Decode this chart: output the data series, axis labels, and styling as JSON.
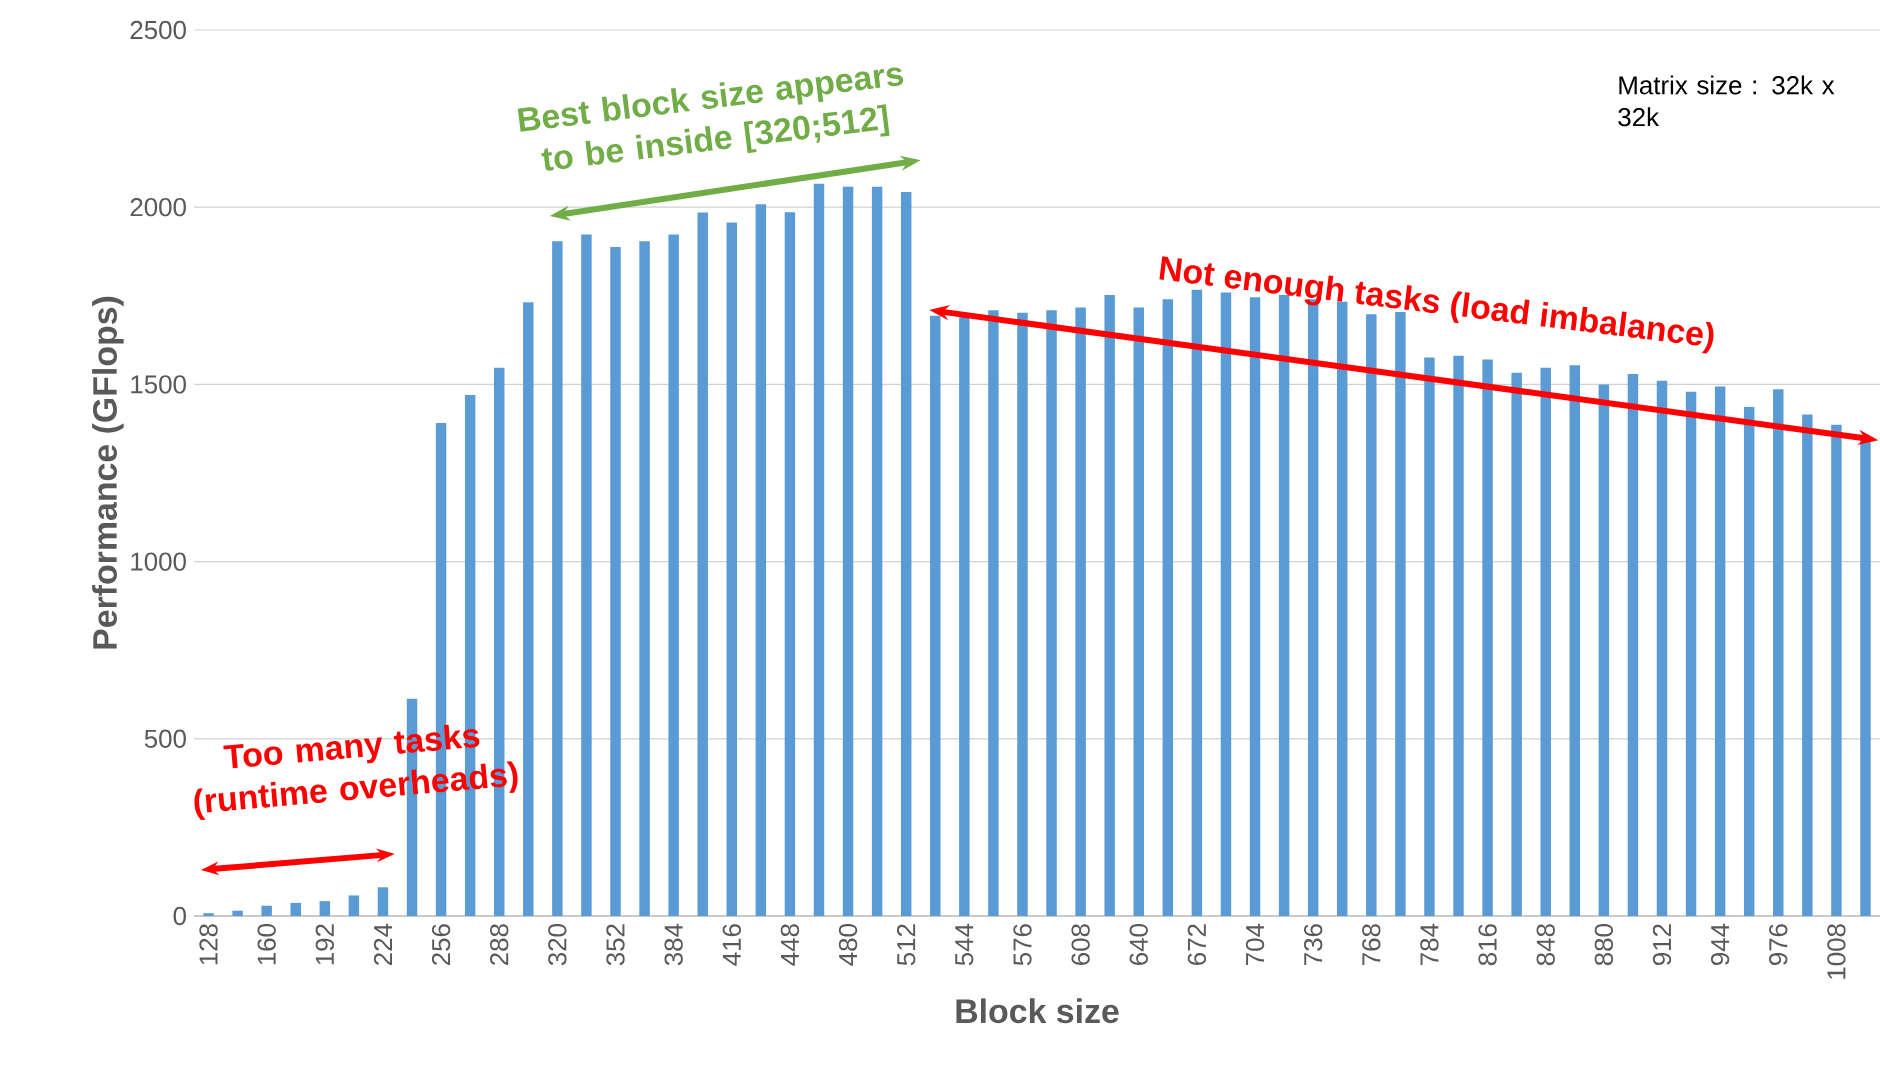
{
  "chart_data": {
    "type": "bar",
    "xlabel": "Block size",
    "ylabel": "Performance (GFlops)",
    "categories": [
      "128",
      null,
      "160",
      null,
      "192",
      null,
      "224",
      null,
      "256",
      null,
      "288",
      null,
      "320",
      null,
      "352",
      null,
      "384",
      null,
      "416",
      null,
      "448",
      null,
      "480",
      null,
      "512",
      null,
      "544",
      null,
      "576",
      null,
      "608",
      null,
      "640",
      null,
      "672",
      null,
      "704",
      null,
      "736",
      null,
      "768",
      null,
      "784",
      null,
      "816",
      null,
      "848",
      null,
      "880",
      null,
      "912",
      null,
      "944",
      null,
      "976",
      null,
      "1008",
      null
    ],
    "values": [
      8,
      15,
      29,
      37,
      42,
      58,
      81,
      613,
      1391,
      1470,
      1547,
      1732,
      1904,
      1923,
      1888,
      1904,
      1923,
      1985,
      1957,
      2008,
      1986,
      2066,
      2058,
      2058,
      2043,
      1694,
      1690,
      1709,
      1702,
      1709,
      1717,
      1752,
      1717,
      1740,
      1767,
      1759,
      1746,
      1752,
      1740,
      1733,
      1698,
      1704,
      1576,
      1581,
      1570,
      1533,
      1547,
      1554,
      1500,
      1529,
      1510,
      1479,
      1494,
      1436,
      1486,
      1415,
      1386,
      1345
    ],
    "color": "#5b9bd5",
    "ylim": [
      0,
      2500
    ],
    "yticks": [
      0,
      500,
      1000,
      1500,
      2000,
      2500
    ],
    "grid": "y",
    "annotations": [
      "Best block size appears to be inside [320;512]",
      "Not enough tasks (load imbalance)",
      "Too many tasks (runtime overheads)",
      "Matrix size : 32k x 32k"
    ]
  }
}
